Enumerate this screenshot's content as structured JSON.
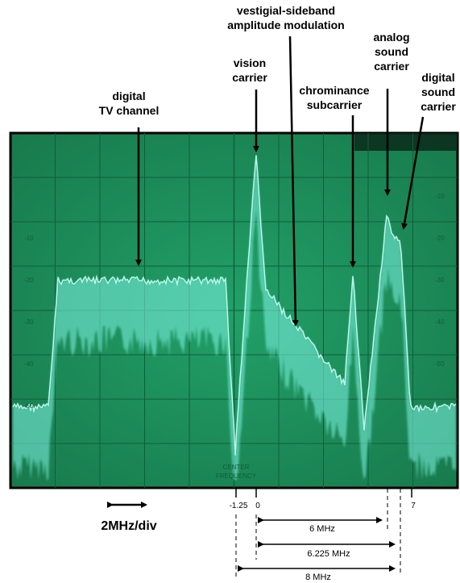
{
  "annotations": {
    "digital_tv_channel": [
      "digital",
      "TV channel"
    ],
    "vestigial_sideband": [
      "vestigial-sideband",
      "amplitude modulation"
    ],
    "vision_carrier": [
      "vision",
      "carrier"
    ],
    "chrominance_subcarrier": [
      "chrominance",
      "subcarrier"
    ],
    "analog_sound_carrier": [
      "analog",
      "sound",
      "carrier"
    ],
    "digital_sound_carrier": [
      "digital",
      "sound",
      "carrier"
    ]
  },
  "frequency_ticks": [
    "-1.25",
    "0",
    "7"
  ],
  "measurements": [
    "6 MHz",
    "6.225 MHz",
    "8 MHz"
  ],
  "scale": "2MHz/div",
  "screen_text": {
    "left_scale": [
      "-10",
      "-20",
      "-30",
      "-40",
      "-50"
    ],
    "right_scale": [
      "-10",
      "-20",
      "-30",
      "-40",
      "-50"
    ],
    "center_frequency": [
      "CENTER",
      "FREQUENCY"
    ]
  },
  "colors": {
    "screen_green": "#1c8a5a",
    "trace_cyan": "#7ff5e6",
    "grid": "#0f5e3a"
  }
}
